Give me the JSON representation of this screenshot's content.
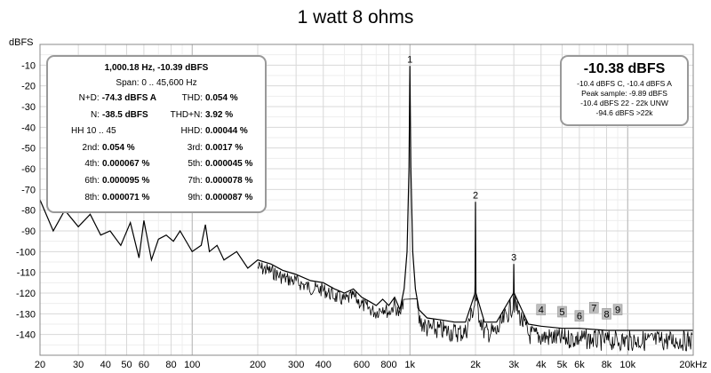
{
  "chart_data": {
    "type": "line",
    "title": "1 watt 8 ohms",
    "ylabel": "dBFS",
    "xlabel": "",
    "x_scale": "log",
    "xlim": [
      20,
      20000
    ],
    "ylim": [
      -150,
      0
    ],
    "grid": true,
    "color": "#000000",
    "x_ticks": [
      {
        "value": 20,
        "label": "20"
      },
      {
        "value": 30,
        "label": "30"
      },
      {
        "value": 40,
        "label": "40"
      },
      {
        "value": 50,
        "label": "50"
      },
      {
        "value": 60,
        "label": "60"
      },
      {
        "value": 80,
        "label": "80"
      },
      {
        "value": 100,
        "label": "100"
      },
      {
        "value": 200,
        "label": "200"
      },
      {
        "value": 300,
        "label": "300"
      },
      {
        "value": 400,
        "label": "400"
      },
      {
        "value": 600,
        "label": "600"
      },
      {
        "value": 800,
        "label": "800"
      },
      {
        "value": 1000,
        "label": "1k"
      },
      {
        "value": 2000,
        "label": "2k"
      },
      {
        "value": 3000,
        "label": "3k"
      },
      {
        "value": 4000,
        "label": "4k"
      },
      {
        "value": 5000,
        "label": "5k"
      },
      {
        "value": 6000,
        "label": "6k"
      },
      {
        "value": 8000,
        "label": "8k"
      },
      {
        "value": 10000,
        "label": "10k"
      },
      {
        "value": 20000,
        "label": "20kHz"
      }
    ],
    "y_ticks": [
      {
        "value": -10,
        "label": "-10"
      },
      {
        "value": -20,
        "label": "-20"
      },
      {
        "value": -30,
        "label": "-30"
      },
      {
        "value": -40,
        "label": "-40"
      },
      {
        "value": -50,
        "label": "-50"
      },
      {
        "value": -60,
        "label": "-60"
      },
      {
        "value": -70,
        "label": "-70"
      },
      {
        "value": -80,
        "label": "-80"
      },
      {
        "value": -90,
        "label": "-90"
      },
      {
        "value": -100,
        "label": "-100"
      },
      {
        "value": -110,
        "label": "-110"
      },
      {
        "value": -120,
        "label": "-120"
      },
      {
        "value": -130,
        "label": "-130"
      },
      {
        "value": -140,
        "label": "-140"
      }
    ],
    "x": [
      20,
      23,
      26,
      30,
      34,
      38,
      42,
      47,
      52,
      57,
      60,
      65,
      70,
      76,
      82,
      88,
      95,
      100,
      110,
      115,
      120,
      130,
      140,
      160,
      180,
      200,
      230,
      260,
      300,
      350,
      400,
      450,
      500,
      550,
      600,
      650,
      700,
      750,
      800,
      850,
      900,
      940,
      970,
      990,
      1000,
      1010,
      1030,
      1060,
      1100,
      1200,
      1400,
      1600,
      1800,
      1990,
      2000,
      2010,
      2200,
      2500,
      2990,
      3000,
      3010,
      3500,
      4000,
      5000,
      6000,
      8000,
      10000,
      12000,
      15000,
      20000
    ],
    "y": [
      -75,
      -90,
      -80,
      -88,
      -82,
      -92,
      -90,
      -97,
      -86,
      -103,
      -85,
      -104,
      -94,
      -92,
      -95,
      -90,
      -96,
      -100,
      -97,
      -87,
      -100,
      -97,
      -104,
      -100,
      -108,
      -104,
      -106,
      -109,
      -111,
      -114,
      -115,
      -118,
      -120,
      -118,
      -122,
      -124,
      -126,
      -123,
      -126,
      -122,
      -128,
      -118,
      -100,
      -60,
      -10.4,
      -60,
      -100,
      -118,
      -128,
      -132,
      -133,
      -134,
      -134,
      -120,
      -76,
      -120,
      -134,
      -134,
      -120,
      -106,
      -120,
      -135,
      -136,
      -137,
      -137,
      -138,
      -138,
      -138,
      -138,
      -138
    ],
    "harmonics": [
      {
        "label": "1",
        "x": 1000,
        "y": -10.4
      },
      {
        "label": "2",
        "x": 2000,
        "y": -76
      },
      {
        "label": "3",
        "x": 3000,
        "y": -106
      },
      {
        "label": "4",
        "x": 4000,
        "y": -128
      },
      {
        "label": "5",
        "x": 5000,
        "y": -129
      },
      {
        "label": "6",
        "x": 6000,
        "y": -131
      },
      {
        "label": "7",
        "x": 7000,
        "y": -127
      },
      {
        "label": "8",
        "x": 8000,
        "y": -130
      },
      {
        "label": "9",
        "x": 9000,
        "y": -128
      }
    ]
  },
  "panel_left": {
    "header": "1,000.18 Hz, -10.39 dBFS",
    "span": "Span: 0 .. 45,600 Hz",
    "rows": [
      [
        {
          "label": "N+D:",
          "value": "-74.3 dBFS A"
        },
        {
          "label": "THD:",
          "value": "0.054 %"
        }
      ],
      [
        {
          "label": "N:",
          "value": "-38.5 dBFS"
        },
        {
          "label": "THD+N:",
          "value": "3.92 %"
        }
      ],
      [
        {
          "label": "HH 10 .. 45",
          "value": ""
        },
        {
          "label": "HHD:",
          "value": "0.00044 %"
        }
      ],
      [
        {
          "label": "2nd:",
          "value": "0.054 %"
        },
        {
          "label": "3rd:",
          "value": "0.0017 %"
        }
      ],
      [
        {
          "label": "4th:",
          "value": "0.000067 %"
        },
        {
          "label": "5th:",
          "value": "0.000045 %"
        }
      ],
      [
        {
          "label": "6th:",
          "value": "0.000095 %"
        },
        {
          "label": "7th:",
          "value": "0.000078 %"
        }
      ],
      [
        {
          "label": "8th:",
          "value": "0.000071 %"
        },
        {
          "label": "9th:",
          "value": "0.000087 %"
        }
      ]
    ]
  },
  "panel_right": {
    "big": "-10.38 dBFS",
    "lines": [
      "-10.4 dBFS C, -10.4 dBFS A",
      "Peak sample: -9.89 dBFS",
      "-10.4 dBFS 22 - 22k UNW",
      "-94.6 dBFS >22k"
    ]
  }
}
